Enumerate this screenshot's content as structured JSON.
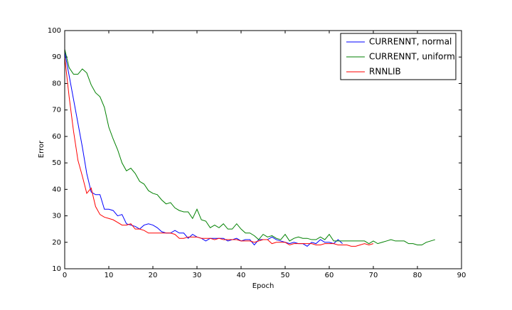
{
  "chart_data": {
    "type": "line",
    "xlabel": "Epoch",
    "ylabel": "Error",
    "x": [
      0,
      1,
      2,
      3,
      4,
      5,
      6,
      7,
      8,
      9,
      10,
      11,
      12,
      13,
      14,
      15,
      16,
      17,
      18,
      19,
      20,
      21,
      22,
      23,
      24,
      25,
      26,
      27,
      28,
      29,
      30,
      31,
      32,
      33,
      34,
      35,
      36,
      37,
      38,
      39,
      40,
      41,
      42,
      43,
      44,
      45,
      46,
      47,
      48,
      49,
      50,
      51,
      52,
      53,
      54,
      55,
      56,
      57,
      58,
      59,
      60,
      61,
      62,
      63,
      64,
      65,
      66,
      67,
      68,
      69,
      70,
      71,
      72,
      73,
      74,
      75,
      76,
      77,
      78,
      79,
      80,
      81,
      82,
      83,
      84
    ],
    "series": [
      {
        "name": "CURRENNT, normal",
        "color": "#0000ff",
        "values": [
          92,
          83,
          74,
          65,
          56,
          46,
          39,
          38,
          38,
          32.5,
          32.5,
          32,
          30,
          30.5,
          27,
          26.5,
          26,
          25,
          26.5,
          27,
          26.5,
          25.5,
          24,
          23.5,
          23.5,
          24.5,
          23.5,
          23.5,
          21.5,
          23,
          22,
          21.5,
          20.5,
          21.5,
          21.5,
          21.5,
          21.5,
          20.5,
          21,
          21.5,
          20.5,
          21,
          21,
          19,
          21,
          21,
          21,
          22,
          21,
          20.5,
          20,
          19.5,
          20,
          19.5,
          19.5,
          18.5,
          20,
          19.5,
          21,
          20,
          20,
          19.5,
          21,
          19.5,
          null,
          null,
          null,
          null,
          null,
          null,
          null,
          null,
          null,
          null,
          null,
          null,
          null,
          null,
          null,
          null,
          null,
          null,
          null,
          null,
          null
        ]
      },
      {
        "name": "CURRENNT, uniform",
        "color": "#008000",
        "values": [
          93,
          86,
          83.5,
          83.5,
          85.5,
          84,
          79.5,
          76.5,
          75,
          71,
          63.5,
          59,
          55,
          50,
          47,
          48,
          46,
          43,
          42,
          39.5,
          38.5,
          38,
          36,
          34.5,
          35,
          33,
          32,
          31.5,
          31.5,
          29,
          32.5,
          28.5,
          28,
          25.5,
          26.5,
          25.5,
          27,
          25,
          25,
          27,
          25,
          23.5,
          23.5,
          22.5,
          21,
          23,
          22,
          22.5,
          21.5,
          21,
          23,
          20.5,
          21.5,
          22,
          21.5,
          21.5,
          21,
          21,
          22,
          21,
          23,
          20.5,
          20.5,
          20.5,
          20.5,
          20.5,
          20.5,
          20.5,
          20.5,
          19.5,
          20.5,
          19.5,
          20,
          20.5,
          21,
          20.5,
          20.5,
          20.5,
          19.5,
          19.5,
          19,
          19,
          20,
          20.5,
          21
        ]
      },
      {
        "name": "RNNLIB",
        "color": "#ff0000",
        "values": [
          90,
          75,
          62,
          51,
          45,
          38.5,
          40.5,
          33.5,
          30.5,
          29.5,
          29,
          28.5,
          27.5,
          26.5,
          26.5,
          27,
          25,
          25,
          24.5,
          23.5,
          23.5,
          23.5,
          23.5,
          23.5,
          23.5,
          23,
          21.5,
          21.5,
          22,
          22,
          22,
          21.5,
          21.5,
          21.5,
          21,
          21.5,
          21,
          21,
          21,
          21,
          20.5,
          20.5,
          20.5,
          20,
          20.5,
          21,
          21,
          19.5,
          20,
          20,
          20,
          19,
          19.5,
          19.5,
          19.5,
          19.5,
          19.5,
          19,
          19,
          19.5,
          19.5,
          19.5,
          19,
          19,
          19,
          18.5,
          18.5,
          19,
          19.5,
          19,
          19.5,
          null,
          null,
          null,
          null,
          null,
          null,
          null,
          null,
          null,
          null,
          null,
          null,
          null,
          null
        ]
      }
    ],
    "xlim": [
      0,
      90
    ],
    "xticks": [
      0,
      10,
      20,
      30,
      40,
      50,
      60,
      70,
      80,
      90
    ],
    "ylim": [
      10,
      100
    ],
    "yticks": [
      10,
      20,
      30,
      40,
      50,
      60,
      70,
      80,
      90,
      100
    ],
    "grid": false,
    "legend": "upper right"
  }
}
